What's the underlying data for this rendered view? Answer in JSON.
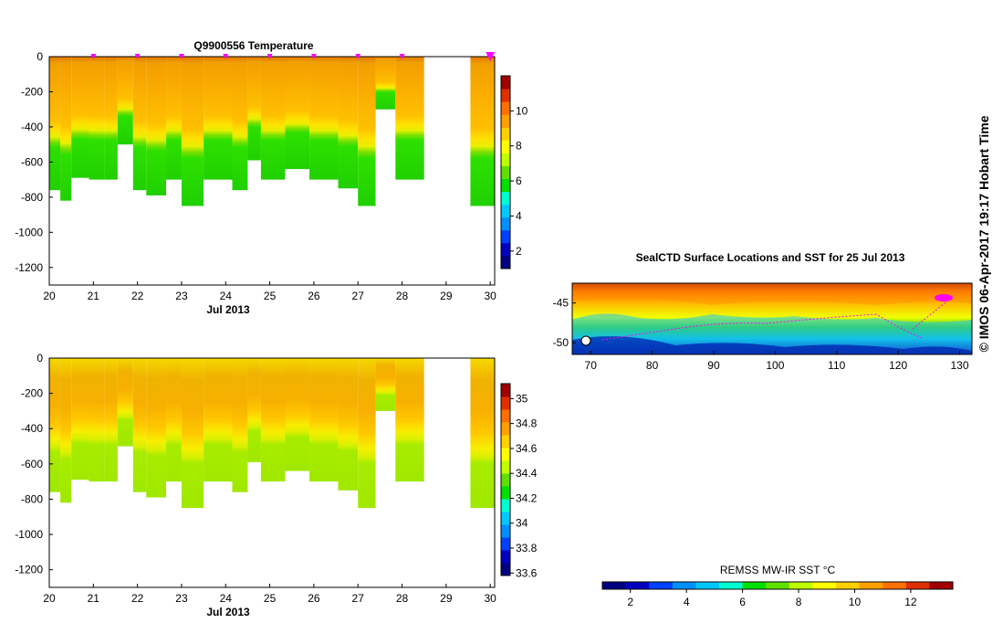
{
  "timestamp": "© IMOS 06-Apr-2017 19:17 Hobart Time",
  "colors": {
    "jet": [
      "#000080",
      "#0000c0",
      "#0040ff",
      "#0090ff",
      "#00c8ff",
      "#00ffd0",
      "#00e000",
      "#60e000",
      "#c0ff00",
      "#ffff00",
      "#ffd000",
      "#ffa000",
      "#ff7000",
      "#e03000",
      "#a00000"
    ],
    "track": "#ff00ff"
  },
  "chart_data": [
    {
      "type": "heatmap",
      "title": "Q9900556  Temperature",
      "xlabel": "Jul 2013",
      "ylabel": "",
      "xlim": [
        20,
        30.1
      ],
      "ylim": [
        -1300,
        0
      ],
      "x_ticks": [
        "20",
        "21",
        "22",
        "23",
        "24",
        "25",
        "26",
        "27",
        "28",
        "29",
        "30"
      ],
      "y_ticks": [
        "0",
        "-200",
        "-400",
        "-600",
        "-800",
        "-1000",
        "-1200"
      ],
      "profile_markers_x": [
        21,
        22,
        23,
        24,
        25,
        26,
        27,
        28,
        30
      ],
      "colorbar_ticks": [
        "2",
        "4",
        "6",
        "8",
        "10"
      ],
      "colorbar_range": [
        1,
        12
      ],
      "profiles": [
        {
          "x_start": 20.0,
          "x_end": 20.25,
          "max_depth": -760
        },
        {
          "x_start": 20.25,
          "x_end": 20.5,
          "max_depth": -820
        },
        {
          "x_start": 20.5,
          "x_end": 20.9,
          "max_depth": -690
        },
        {
          "x_start": 20.9,
          "x_end": 21.25,
          "max_depth": -700
        },
        {
          "x_start": 21.25,
          "x_end": 21.55,
          "max_depth": -700
        },
        {
          "x_start": 21.55,
          "x_end": 21.9,
          "max_depth": -500
        },
        {
          "x_start": 21.9,
          "x_end": 22.2,
          "max_depth": -760
        },
        {
          "x_start": 22.2,
          "x_end": 22.65,
          "max_depth": -790
        },
        {
          "x_start": 22.65,
          "x_end": 23.0,
          "max_depth": -700
        },
        {
          "x_start": 23.0,
          "x_end": 23.5,
          "max_depth": -850
        },
        {
          "x_start": 23.5,
          "x_end": 24.15,
          "max_depth": -700
        },
        {
          "x_start": 24.15,
          "x_end": 24.5,
          "max_depth": -760
        },
        {
          "x_start": 24.5,
          "x_end": 24.8,
          "max_depth": -590
        },
        {
          "x_start": 24.8,
          "x_end": 25.35,
          "max_depth": -700
        },
        {
          "x_start": 25.35,
          "x_end": 25.9,
          "max_depth": -640
        },
        {
          "x_start": 25.9,
          "x_end": 26.55,
          "max_depth": -700
        },
        {
          "x_start": 26.55,
          "x_end": 27.0,
          "max_depth": -750
        },
        {
          "x_start": 27.0,
          "x_end": 27.4,
          "max_depth": -850
        },
        {
          "x_start": 27.4,
          "x_end": 27.85,
          "max_depth": -300
        },
        {
          "x_start": 27.85,
          "x_end": 28.5,
          "max_depth": -700
        },
        {
          "x_start": 29.55,
          "x_end": 30.1,
          "max_depth": -850
        }
      ]
    },
    {
      "type": "heatmap",
      "title": "",
      "xlabel": "Jul 2013",
      "ylabel": "",
      "xlim": [
        20,
        30.1
      ],
      "ylim": [
        -1300,
        0
      ],
      "x_ticks": [
        "20",
        "21",
        "22",
        "23",
        "24",
        "25",
        "26",
        "27",
        "28",
        "29",
        "30"
      ],
      "y_ticks": [
        "0",
        "-200",
        "-400",
        "-600",
        "-800",
        "-1000",
        "-1200"
      ],
      "colorbar_ticks": [
        "33.6",
        "33.8",
        "34",
        "34.2",
        "34.4",
        "34.6",
        "34.8",
        "35"
      ],
      "colorbar_range": [
        33.58,
        35.12
      ]
    },
    {
      "type": "heatmap",
      "title": "SealCTD Surface Locations and SST for 25 Jul 2013",
      "xlabel": "",
      "ylabel": "",
      "xlim": [
        67,
        132
      ],
      "ylim": [
        -51.5,
        -42.5
      ],
      "x_ticks": [
        "70",
        "80",
        "90",
        "100",
        "110",
        "120",
        "130"
      ],
      "y_ticks": [
        "-45",
        "-50"
      ],
      "colorbar_label": "REMSS MW-IR SST °C",
      "colorbar_ticks": [
        "2",
        "4",
        "6",
        "8",
        "10",
        "12"
      ],
      "colorbar_range": [
        1,
        13.5
      ]
    }
  ]
}
